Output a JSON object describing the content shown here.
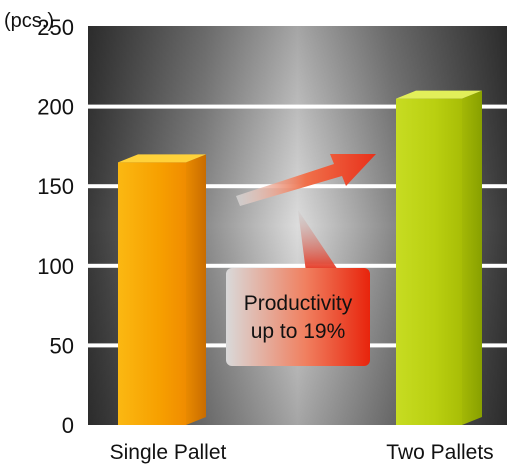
{
  "chart_data": {
    "type": "bar",
    "ylabel": "(pcs.)",
    "ylim": [
      0,
      250
    ],
    "yticks": [
      0,
      50,
      100,
      150,
      200,
      250
    ],
    "categories": [
      "Single Pallet",
      "Two Pallets"
    ],
    "values": [
      165,
      205
    ],
    "grid": true,
    "bar_colors": [
      "#f7a000",
      "#b9cf10"
    ],
    "annotation": {
      "lines": [
        "Productivity",
        "up to 19%"
      ],
      "arrow_color": "#e83a1a"
    }
  }
}
